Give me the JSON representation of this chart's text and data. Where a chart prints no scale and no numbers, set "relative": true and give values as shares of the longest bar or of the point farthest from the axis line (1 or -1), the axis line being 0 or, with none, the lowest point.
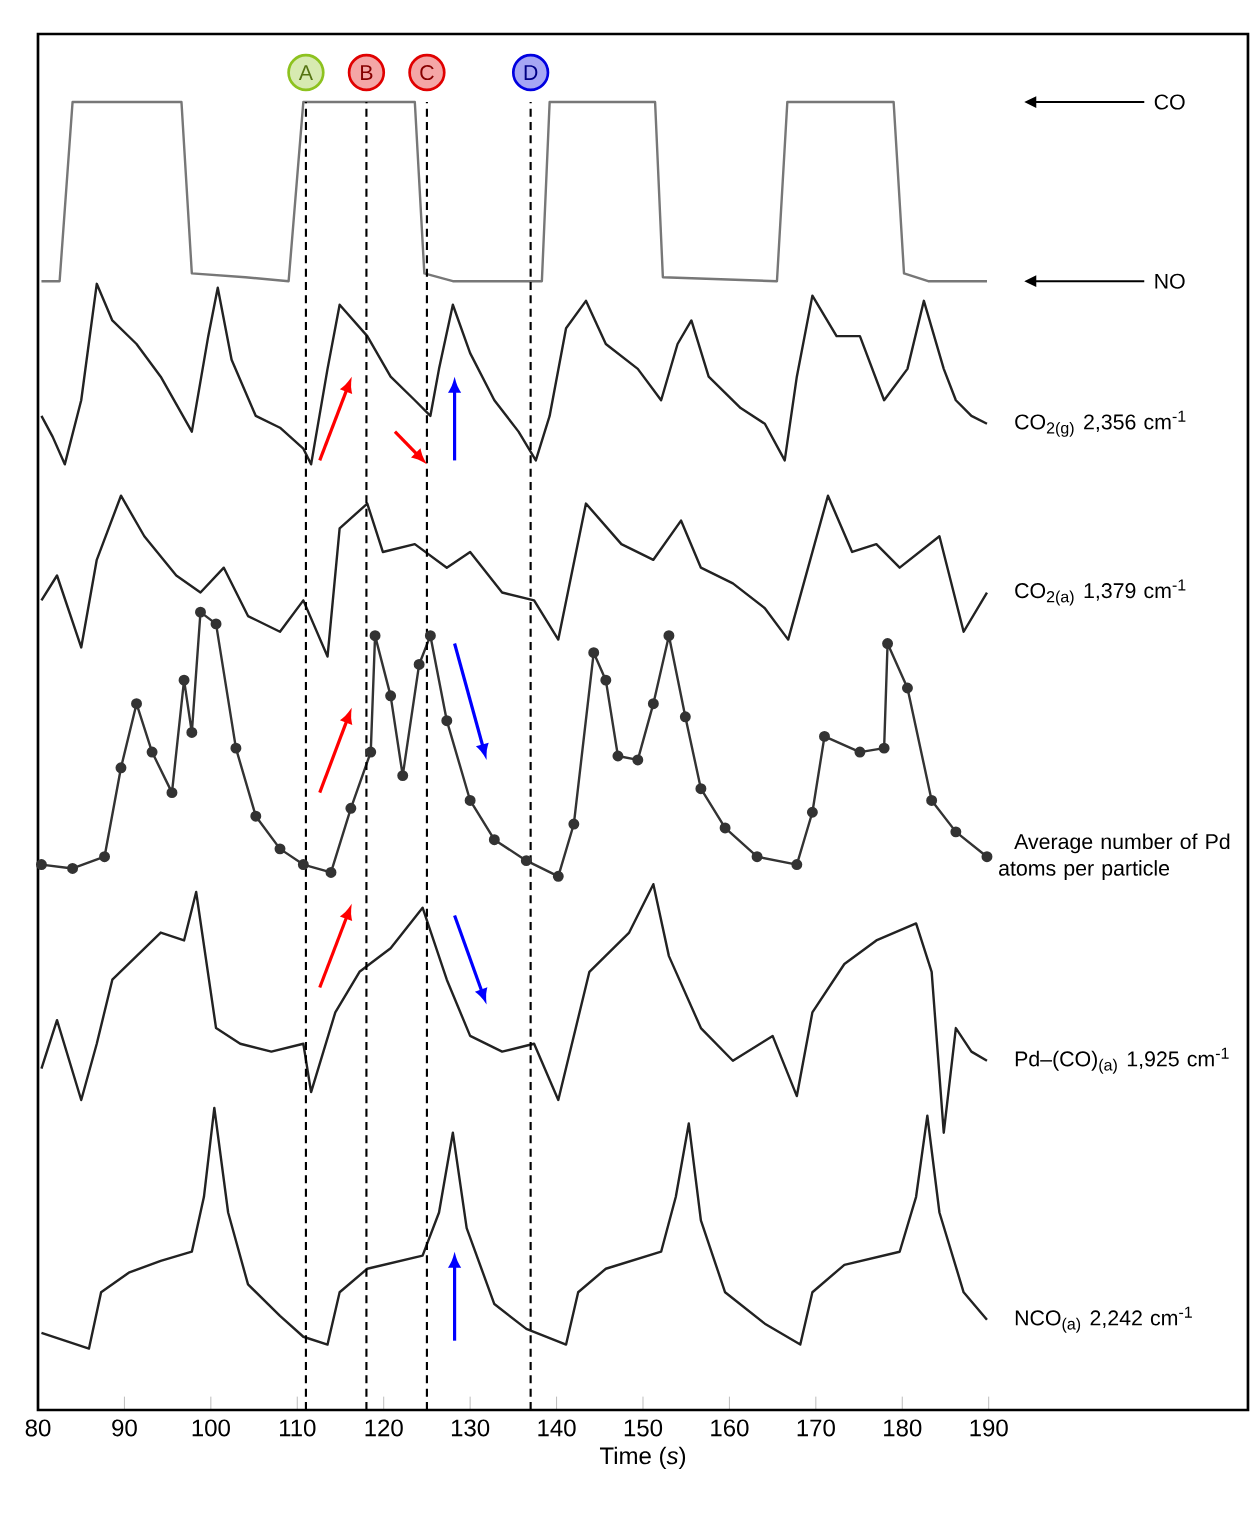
{
  "chart_data": {
    "type": "line",
    "relative": true,
    "xlabel": "Time (*s*)",
    "xlim": [
      80,
      220
    ],
    "xticks": [
      80,
      90,
      100,
      110,
      120,
      130,
      140,
      150,
      160,
      170,
      180,
      190
    ],
    "marker": "none",
    "line_style": "solid",
    "series": [
      {
        "color": "#777777",
        "x": [
          80.4,
          82.5,
          84.0,
          96.6,
          97.8,
          104.0,
          109.0,
          110.7,
          123.6,
          124.7,
          128.0,
          138.3,
          139.2,
          151.4,
          152.3,
          165.5,
          166.7,
          179.0,
          180.2,
          183.0,
          189.8
        ],
        "values": [
          0.863,
          0.863,
          1.0,
          1.0,
          0.869,
          0.866,
          0.863,
          1.0,
          1.0,
          0.869,
          0.863,
          0.863,
          1.0,
          1.0,
          0.866,
          0.863,
          1.0,
          1.0,
          0.869,
          0.863,
          0.863
        ]
      },
      {
        "name": "CO$_{2(g)}$ 2,356 cm$^{-1}$",
        "color": "#222222",
        "x": [
          80.4,
          81.7,
          83.1,
          85.0,
          86.8,
          88.6,
          91.4,
          94.2,
          97.8,
          99.7,
          100.8,
          102.4,
          105.2,
          108.0,
          110.7,
          111.6,
          113.5,
          114.9,
          118.1,
          120.8,
          123.6,
          125.4,
          126.4,
          128.0,
          130.0,
          132.8,
          135.6,
          137.6,
          139.2,
          141.1,
          143.4,
          145.7,
          149.4,
          152.1,
          154.0,
          155.6,
          157.6,
          161.3,
          164.1,
          166.4,
          167.8,
          169.6,
          172.4,
          175.1,
          177.9,
          180.6,
          182.5,
          184.8,
          186.2,
          188.0,
          189.8
        ],
        "values": [
          0.76,
          0.744,
          0.723,
          0.772,
          0.861,
          0.833,
          0.815,
          0.79,
          0.748,
          0.821,
          0.858,
          0.803,
          0.76,
          0.751,
          0.735,
          0.723,
          0.796,
          0.845,
          0.821,
          0.79,
          0.772,
          0.76,
          0.796,
          0.845,
          0.808,
          0.772,
          0.748,
          0.726,
          0.76,
          0.827,
          0.848,
          0.815,
          0.796,
          0.772,
          0.815,
          0.833,
          0.79,
          0.766,
          0.754,
          0.726,
          0.79,
          0.852,
          0.821,
          0.821,
          0.772,
          0.796,
          0.848,
          0.796,
          0.772,
          0.76,
          0.754
        ]
      },
      {
        "name": "CO$_{2(a)}$ 1,379 cm$^{-1}$",
        "color": "#222222",
        "x": [
          80.4,
          82.2,
          85.0,
          86.8,
          89.6,
          92.3,
          96.0,
          98.8,
          101.5,
          104.3,
          108.0,
          110.7,
          113.5,
          114.9,
          118.1,
          119.9,
          123.6,
          127.3,
          130.0,
          133.7,
          137.4,
          140.2,
          143.4,
          147.5,
          151.2,
          154.4,
          156.7,
          160.4,
          164.1,
          166.8,
          171.4,
          174.2,
          177.0,
          179.7,
          184.3,
          187.1,
          189.8
        ],
        "values": [
          0.619,
          0.638,
          0.583,
          0.65,
          0.699,
          0.668,
          0.638,
          0.625,
          0.644,
          0.607,
          0.595,
          0.619,
          0.576,
          0.674,
          0.693,
          0.656,
          0.662,
          0.644,
          0.656,
          0.625,
          0.619,
          0.589,
          0.693,
          0.662,
          0.65,
          0.68,
          0.644,
          0.632,
          0.613,
          0.589,
          0.699,
          0.656,
          0.662,
          0.644,
          0.668,
          0.595,
          0.625
        ]
      },
      {
        "name": "Average number of Pd atoms per particle",
        "color": "#333333",
        "marker": "circle",
        "x": [
          80.4,
          84.0,
          87.7,
          89.6,
          91.4,
          93.2,
          95.5,
          96.9,
          97.8,
          98.8,
          100.6,
          102.9,
          105.2,
          108.0,
          110.7,
          113.9,
          116.2,
          118.5,
          119.0,
          120.8,
          122.2,
          124.1,
          125.4,
          127.3,
          130.0,
          132.8,
          136.5,
          140.2,
          142.0,
          144.3,
          145.7,
          147.1,
          149.4,
          151.2,
          153.0,
          154.9,
          156.7,
          159.5,
          163.2,
          167.8,
          169.6,
          171.0,
          175.1,
          177.9,
          178.3,
          180.6,
          183.4,
          186.2,
          189.8
        ],
        "values": [
          0.417,
          0.414,
          0.423,
          0.491,
          0.54,
          0.503,
          0.472,
          0.558,
          0.518,
          0.61,
          0.601,
          0.506,
          0.454,
          0.429,
          0.417,
          0.411,
          0.46,
          0.503,
          0.592,
          0.546,
          0.485,
          0.57,
          0.592,
          0.527,
          0.466,
          0.436,
          0.42,
          0.408,
          0.448,
          0.579,
          0.558,
          0.5,
          0.497,
          0.54,
          0.592,
          0.53,
          0.475,
          0.445,
          0.423,
          0.417,
          0.457,
          0.515,
          0.503,
          0.506,
          0.586,
          0.552,
          0.466,
          0.442,
          0.423
        ]
      },
      {
        "name": "Pd–(CO)$_{(a)}$ 1,925 cm$^{-1}$",
        "color": "#222222",
        "x": [
          80.4,
          82.2,
          85.0,
          86.8,
          88.6,
          91.4,
          94.2,
          96.9,
          98.3,
          100.6,
          103.4,
          107.0,
          110.7,
          111.6,
          114.4,
          117.2,
          120.8,
          124.5,
          127.3,
          130.0,
          133.7,
          137.4,
          140.2,
          143.8,
          148.4,
          151.2,
          153.0,
          156.7,
          160.4,
          165.0,
          167.8,
          169.6,
          173.3,
          177.0,
          181.6,
          183.4,
          184.8,
          186.2,
          188.0,
          189.8
        ],
        "values": [
          0.261,
          0.298,
          0.237,
          0.28,
          0.329,
          0.347,
          0.365,
          0.359,
          0.396,
          0.292,
          0.28,
          0.274,
          0.28,
          0.243,
          0.304,
          0.335,
          0.353,
          0.384,
          0.329,
          0.286,
          0.274,
          0.28,
          0.237,
          0.335,
          0.365,
          0.402,
          0.347,
          0.292,
          0.267,
          0.286,
          0.24,
          0.304,
          0.341,
          0.359,
          0.372,
          0.335,
          0.212,
          0.292,
          0.274,
          0.267
        ]
      },
      {
        "name": "NCO$_{(a)}$ 2,242 cm$^{-1}$",
        "color": "#222222",
        "x": [
          80.4,
          85.9,
          87.3,
          90.5,
          94.2,
          97.8,
          99.2,
          100.4,
          102.0,
          104.3,
          108.0,
          110.7,
          113.5,
          114.9,
          118.1,
          124.5,
          126.4,
          128.0,
          129.6,
          132.8,
          136.5,
          141.1,
          142.5,
          145.7,
          152.1,
          153.8,
          155.3,
          156.7,
          159.5,
          164.1,
          168.2,
          169.6,
          173.3,
          179.7,
          181.6,
          182.9,
          184.3,
          187.1,
          189.8
        ],
        "values": [
          0.059,
          0.047,
          0.09,
          0.105,
          0.114,
          0.121,
          0.163,
          0.231,
          0.151,
          0.096,
          0.072,
          0.056,
          0.05,
          0.09,
          0.108,
          0.118,
          0.151,
          0.212,
          0.139,
          0.081,
          0.062,
          0.05,
          0.09,
          0.108,
          0.121,
          0.163,
          0.219,
          0.145,
          0.09,
          0.066,
          0.05,
          0.09,
          0.111,
          0.121,
          0.163,
          0.225,
          0.151,
          0.09,
          0.069
        ]
      }
    ],
    "ref_lines": [
      {
        "axis": "x",
        "value": 111,
        "label": "A",
        "color": "#000000",
        "line_style": "dashed"
      },
      {
        "axis": "x",
        "value": 118,
        "label": "B",
        "color": "#000000",
        "line_style": "dashed"
      },
      {
        "axis": "x",
        "value": 125,
        "label": "C",
        "color": "#000000",
        "line_style": "dashed"
      },
      {
        "axis": "x",
        "value": 137,
        "label": "D",
        "color": "#000000",
        "line_style": "dashed"
      }
    ],
    "annotations": [
      "CO",
      "NO"
    ]
  }
}
